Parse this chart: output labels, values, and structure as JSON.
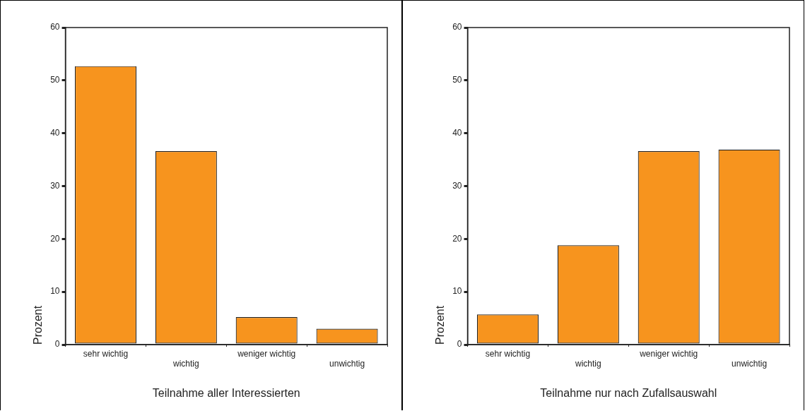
{
  "chart_data": [
    {
      "type": "bar",
      "xlabel": "Teilnahme aller Interessierten",
      "ylabel": "Prozent",
      "categories": [
        "sehr wichtig",
        "wichtig",
        "weniger wichtig",
        "unwichtig"
      ],
      "values": [
        52.7,
        36.6,
        5.2,
        3.0
      ],
      "color": "#f7941e",
      "ylim": [
        0,
        60
      ],
      "yticks": [
        0,
        10,
        20,
        30,
        40,
        50,
        60
      ],
      "grid": false,
      "legend": false
    },
    {
      "type": "bar",
      "xlabel": "Teilnahme nur nach Zufallsauswahl",
      "ylabel": "Prozent",
      "categories": [
        "sehr wichtig",
        "wichtig",
        "weniger wichtig",
        "unwichtig"
      ],
      "values": [
        5.7,
        18.8,
        36.6,
        36.9
      ],
      "color": "#f7941e",
      "ylim": [
        0,
        60
      ],
      "yticks": [
        0,
        10,
        20,
        30,
        40,
        50,
        60
      ],
      "grid": false,
      "legend": false
    }
  ]
}
